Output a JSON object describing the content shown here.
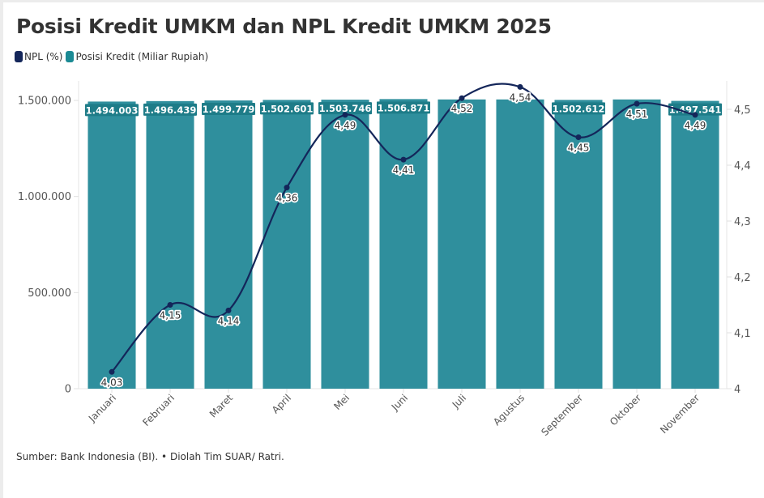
{
  "title": "Posisi Kredit UMKM dan NPL Kredit UMKM 2025",
  "source": "Sumber: Bank Indonesia (BI). • Diolah Tim SUAR/ Ratri.",
  "colors": {
    "npl": "#14265a",
    "kredit": "#2f8f9d",
    "kredit_label_bg": "#1e7c88"
  },
  "chart_data": {
    "type": "bar",
    "title": "Posisi Kredit UMKM dan NPL Kredit UMKM 2025",
    "xlabel": "",
    "ylabel": "",
    "categories": [
      "Januari",
      "Februari",
      "Maret",
      "April",
      "Mei",
      "Juni",
      "Juli",
      "Agustus",
      "September",
      "Oktober",
      "November"
    ],
    "legend": [
      {
        "name": "NPL (%)",
        "type": "line"
      },
      {
        "name": "Posisi Kredit (Miliar Rupiah)",
        "type": "bar"
      }
    ],
    "legend_position": "top-left",
    "series": [
      {
        "name": "Posisi Kredit (Miliar Rupiah)",
        "type": "bar",
        "axis": "left",
        "values": [
          1494003,
          1496439,
          1499779,
          1502601,
          1503746,
          1506871,
          1505000,
          1505000,
          1502612,
          1505000,
          1497541
        ],
        "labels": [
          "1.494.003",
          "1.496.439",
          "1.499.779",
          "1.502.601",
          "1.503.746",
          "1.506.871",
          "",
          "",
          "1.502.612",
          "",
          "1.497.541"
        ]
      },
      {
        "name": "NPL (%)",
        "type": "line",
        "axis": "right",
        "values": [
          4.03,
          4.15,
          4.14,
          4.36,
          4.49,
          4.41,
          4.52,
          4.54,
          4.45,
          4.51,
          4.49
        ],
        "labels": [
          "4,03",
          "4,15",
          "4,14",
          "4,36",
          "4,49",
          "4,41",
          "4,52",
          "4,54",
          "4,45",
          "4,51",
          "4,49"
        ]
      }
    ],
    "y_left": {
      "range": [
        0,
        1500000
      ],
      "ticks": [
        0,
        500000,
        1000000,
        1500000
      ],
      "tick_labels": [
        "0",
        "500.000",
        "1.000.000",
        "1.500.000"
      ]
    },
    "y_right": {
      "range": [
        4,
        4.5
      ],
      "ticks": [
        4,
        4.1,
        4.2,
        4.3,
        4.4,
        4.5
      ],
      "tick_labels": [
        "4",
        "4,1",
        "4,2",
        "4,3",
        "4,4",
        "4,5"
      ]
    },
    "grid": false
  }
}
